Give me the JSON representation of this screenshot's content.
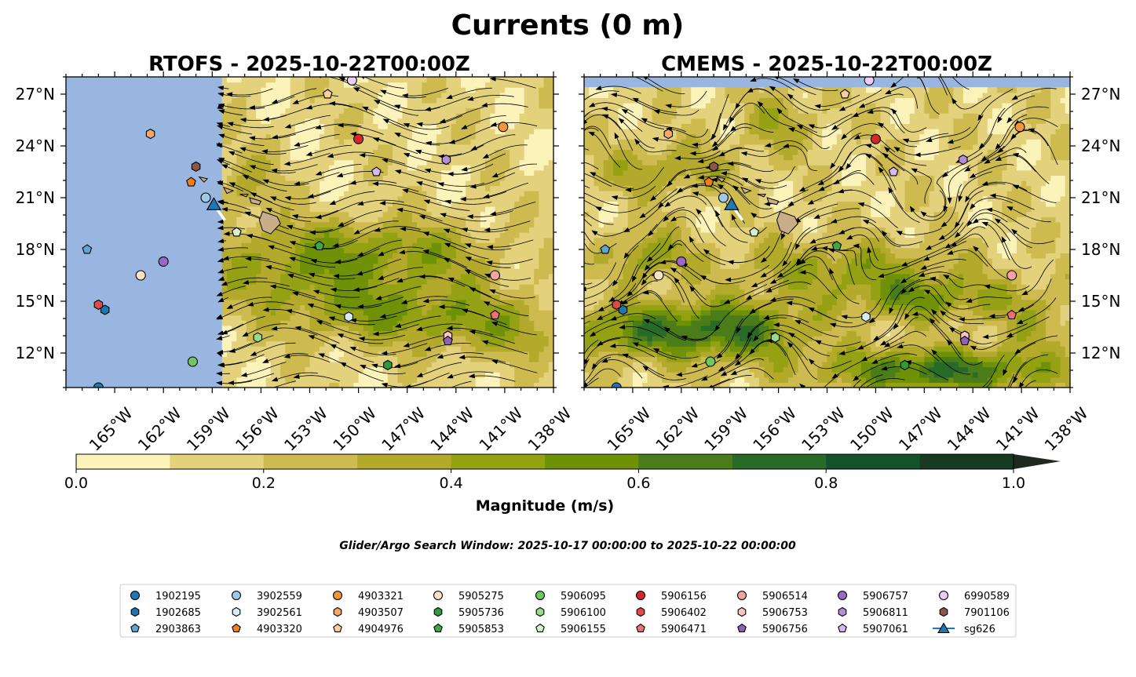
{
  "title": "Currents (0 m)",
  "panels": [
    {
      "title": "RTOFS - 2025-10-22T00:00Z",
      "model": "RTOFS"
    },
    {
      "title": "CMEMS - 2025-10-22T00:00Z",
      "model": "CMEMS"
    }
  ],
  "colorbar": {
    "label": "Magnitude (m/s)",
    "ticks": [
      "0.0",
      "0.2",
      "0.4",
      "0.6",
      "0.8",
      "1.0"
    ],
    "levels": [
      0.0,
      0.1,
      0.2,
      0.3,
      0.4,
      0.5,
      0.6,
      0.7,
      0.8,
      0.9,
      1.0
    ],
    "colors": [
      "#fbf3b9",
      "#e3d17c",
      "#cdbb4f",
      "#b3aa2c",
      "#93a112",
      "#6f9108",
      "#4a7c1a",
      "#286a28",
      "#13522b",
      "#163b22"
    ],
    "extend_color": "#1f2a1e"
  },
  "search_window": "Glider/Argo Search Window: 2025-10-17 00:00:00 to 2025-10-22 00:00:00",
  "colors": {
    "ocean_mask": "#98b6e0",
    "land": "#c9ac88",
    "glider": "#1f77b4"
  },
  "chart_data": {
    "type": "heatmap",
    "variable": "surface current magnitude",
    "units": "m/s",
    "vmin": 0.0,
    "vmax": 1.0,
    "xlim": [
      -168,
      -138
    ],
    "ylim": [
      10,
      28
    ],
    "xticks": [
      -165,
      -162,
      -159,
      -156,
      -153,
      -150,
      -147,
      -144,
      -141,
      -138
    ],
    "xticklabels": [
      "165°W",
      "162°W",
      "159°W",
      "156°W",
      "153°W",
      "150°W",
      "147°W",
      "144°W",
      "141°W",
      "138°W"
    ],
    "yticks": [
      12,
      15,
      18,
      21,
      24,
      27
    ],
    "yticklabels": [
      "12°N",
      "15°N",
      "18°N",
      "21°N",
      "24°N",
      "27°N"
    ],
    "rtofs_west_edge_lon": -158.6,
    "glider": {
      "id": "sg626",
      "lon": -158.9,
      "lat": 20.6,
      "marker": "triangle"
    },
    "floats": [
      {
        "id": "1902195",
        "lon": -166.0,
        "lat": 10.0,
        "marker": "circle",
        "color": "#1f77b4"
      },
      {
        "id": "1902685",
        "lon": -165.6,
        "lat": 14.5,
        "marker": "hexagon",
        "color": "#1f77b4"
      },
      {
        "id": "2903863",
        "lon": -166.7,
        "lat": 18.0,
        "marker": "pentagon",
        "color": "#5ea6d4"
      },
      {
        "id": "3902559",
        "lon": -159.4,
        "lat": 21.0,
        "marker": "circle",
        "color": "#9ec9e8"
      },
      {
        "id": "3902561",
        "lon": -150.6,
        "lat": 14.1,
        "marker": "hexagon",
        "color": "#d4ebfa"
      },
      {
        "id": "4903320",
        "lon": -160.3,
        "lat": 21.9,
        "marker": "pentagon",
        "color": "#f57f17"
      },
      {
        "id": "4903321",
        "lon": -141.1,
        "lat": 25.1,
        "marker": "circle",
        "color": "#f39636"
      },
      {
        "id": "4903507",
        "lon": -162.8,
        "lat": 24.7,
        "marker": "hexagon",
        "color": "#f6a866"
      },
      {
        "id": "4904976",
        "lon": -151.9,
        "lat": 27.0,
        "marker": "pentagon",
        "color": "#fbcf9d"
      },
      {
        "id": "5905275",
        "lon": -163.4,
        "lat": 16.5,
        "marker": "circle",
        "color": "#fde2c6"
      },
      {
        "id": "5905736",
        "lon": -148.2,
        "lat": 11.3,
        "marker": "hexagon",
        "color": "#2e9a3a"
      },
      {
        "id": "5905853",
        "lon": -152.4,
        "lat": 18.2,
        "marker": "pentagon",
        "color": "#3daa3f"
      },
      {
        "id": "5906095",
        "lon": -160.2,
        "lat": 11.5,
        "marker": "circle",
        "color": "#6dc862"
      },
      {
        "id": "5906100",
        "lon": -156.2,
        "lat": 12.9,
        "marker": "hexagon",
        "color": "#98d98a"
      },
      {
        "id": "5906155",
        "lon": -157.5,
        "lat": 19.0,
        "marker": "pentagon",
        "color": "#d6f2cc"
      },
      {
        "id": "5906156",
        "lon": -150.0,
        "lat": 24.4,
        "marker": "circle",
        "color": "#d62728"
      },
      {
        "id": "5906402",
        "lon": -166.0,
        "lat": 14.8,
        "marker": "hexagon",
        "color": "#e24a4a"
      },
      {
        "id": "5906471",
        "lon": -141.6,
        "lat": 14.2,
        "marker": "pentagon",
        "color": "#ee6f74"
      },
      {
        "id": "5906514",
        "lon": -141.6,
        "lat": 16.5,
        "marker": "circle",
        "color": "#f5a3a3"
      },
      {
        "id": "5906753",
        "lon": -144.5,
        "lat": 13.0,
        "marker": "hexagon",
        "color": "#fac5c5"
      },
      {
        "id": "5906756",
        "lon": -144.5,
        "lat": 12.7,
        "marker": "pentagon",
        "color": "#8f62b8"
      },
      {
        "id": "5906757",
        "lon": -162.0,
        "lat": 17.3,
        "marker": "circle",
        "color": "#9a67c4"
      },
      {
        "id": "5906811",
        "lon": -144.6,
        "lat": 23.2,
        "marker": "hexagon",
        "color": "#b58ed8"
      },
      {
        "id": "5907061",
        "lon": -148.9,
        "lat": 22.5,
        "marker": "pentagon",
        "color": "#d7b8f0"
      },
      {
        "id": "6990589",
        "lon": -150.4,
        "lat": 27.8,
        "marker": "circle",
        "color": "#eccdf7"
      },
      {
        "id": "7901106",
        "lon": -160.0,
        "lat": 22.8,
        "marker": "hexagon",
        "color": "#8c564b"
      }
    ]
  }
}
